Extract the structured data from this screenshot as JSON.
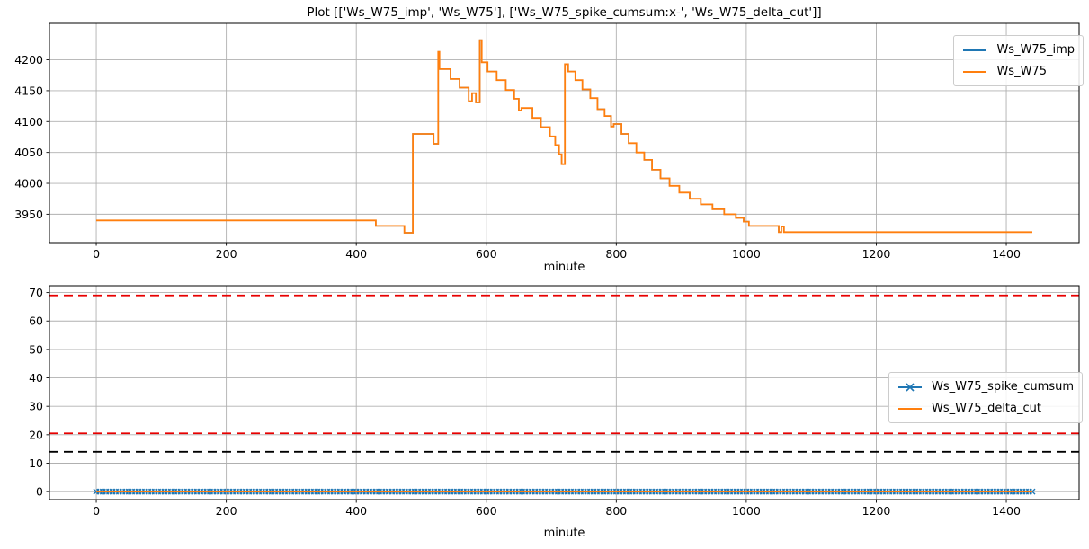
{
  "title": "Plot [['Ws_W75_imp', 'Ws_W75'], ['Ws_W75_spike_cumsum:x-', 'Ws_W75_delta_cut']]",
  "colors": {
    "blue": "#1f77b4",
    "orange": "#ff7f0e",
    "red": "#e80000",
    "black": "#000000",
    "grid": "#b0b0b0",
    "axis": "#000000"
  },
  "chart_data": [
    {
      "type": "line",
      "subplot": "top",
      "xlabel": "minute",
      "ylabel": "",
      "xlim": [
        -72,
        1512
      ],
      "ylim": [
        3904,
        4259
      ],
      "xticks": [
        0,
        200,
        400,
        600,
        800,
        1000,
        1200,
        1400
      ],
      "yticks": [
        3950,
        4000,
        4050,
        4100,
        4150,
        4200
      ],
      "grid": true,
      "legend": {
        "location": "upper right",
        "entries": [
          {
            "label": "Ws_W75_imp",
            "color": "#1f77b4",
            "marker": null
          },
          {
            "label": "Ws_W75",
            "color": "#ff7f0e",
            "marker": null
          }
        ]
      },
      "series": [
        {
          "name": "Ws_W75_imp",
          "color": "#1f77b4",
          "line_width": 1.5,
          "draw": "steps-post",
          "points": "same_as:Ws_W75",
          "note": "fully overlapped by Ws_W75"
        },
        {
          "name": "Ws_W75",
          "color": "#ff7f0e",
          "line_width": 1.8,
          "draw": "steps-post",
          "points": [
            [
              0,
              3940
            ],
            [
              430,
              3931
            ],
            [
              474,
              3920
            ],
            [
              487,
              4080
            ],
            [
              519,
              4064
            ],
            [
              526,
              4213
            ],
            [
              528,
              4185
            ],
            [
              545,
              4169
            ],
            [
              559,
              4155
            ],
            [
              573,
              4133
            ],
            [
              578,
              4146
            ],
            [
              584,
              4131
            ],
            [
              590,
              4232
            ],
            [
              593,
              4196
            ],
            [
              602,
              4181
            ],
            [
              616,
              4167
            ],
            [
              630,
              4151
            ],
            [
              643,
              4137
            ],
            [
              650,
              4118
            ],
            [
              654,
              4122
            ],
            [
              671,
              4106
            ],
            [
              684,
              4091
            ],
            [
              698,
              4076
            ],
            [
              706,
              4062
            ],
            [
              712,
              4047
            ],
            [
              716,
              4031
            ],
            [
              721,
              4193
            ],
            [
              726,
              4181
            ],
            [
              737,
              4167
            ],
            [
              748,
              4152
            ],
            [
              760,
              4138
            ],
            [
              771,
              4120
            ],
            [
              782,
              4109
            ],
            [
              792,
              4092
            ],
            [
              796,
              4096
            ],
            [
              808,
              4080
            ],
            [
              819,
              4065
            ],
            [
              831,
              4050
            ],
            [
              843,
              4038
            ],
            [
              855,
              4022
            ],
            [
              868,
              4008
            ],
            [
              882,
              3996
            ],
            [
              897,
              3985
            ],
            [
              913,
              3975
            ],
            [
              930,
              3966
            ],
            [
              948,
              3958
            ],
            [
              966,
              3950
            ],
            [
              984,
              3944
            ],
            [
              996,
              3938
            ],
            [
              1004,
              3931
            ],
            [
              1050,
              3921
            ],
            [
              1054,
              3930
            ],
            [
              1058,
              3921
            ],
            [
              1440,
              3921
            ]
          ]
        }
      ]
    },
    {
      "type": "line",
      "subplot": "bottom",
      "xlabel": "minute",
      "ylabel": "",
      "xlim": [
        -72,
        1512
      ],
      "ylim": [
        -2.8,
        72.4
      ],
      "xticks": [
        0,
        200,
        400,
        600,
        800,
        1000,
        1200,
        1400
      ],
      "yticks": [
        0,
        10,
        20,
        30,
        40,
        50,
        60,
        70
      ],
      "grid": true,
      "legend": {
        "location": "center right",
        "entries": [
          {
            "label": "Ws_W75_spike_cumsum",
            "color": "#1f77b4",
            "marker": "x"
          },
          {
            "label": "Ws_W75_delta_cut",
            "color": "#ff7f0e",
            "marker": null
          }
        ]
      },
      "series": [
        {
          "name": "Ws_W75_spike_cumsum",
          "color": "#1f77b4",
          "line_width": 1.5,
          "draw": "line",
          "marker": "x",
          "marker_every_minutes": 5,
          "points": [
            [
              0,
              0
            ],
            [
              1440,
              0
            ]
          ]
        },
        {
          "name": "Ws_W75_delta_cut",
          "color": "#ff7f0e",
          "line_width": 1.8,
          "draw": "line",
          "points": [
            [
              0,
              0
            ],
            [
              1440,
              0
            ]
          ]
        }
      ],
      "hlines": [
        {
          "y": 69,
          "color": "#e80000",
          "linestyle": "dashed"
        },
        {
          "y": 20.5,
          "color": "#e80000",
          "linestyle": "dashed"
        },
        {
          "y": 14,
          "color": "#000000",
          "linestyle": "dashed"
        }
      ]
    }
  ]
}
